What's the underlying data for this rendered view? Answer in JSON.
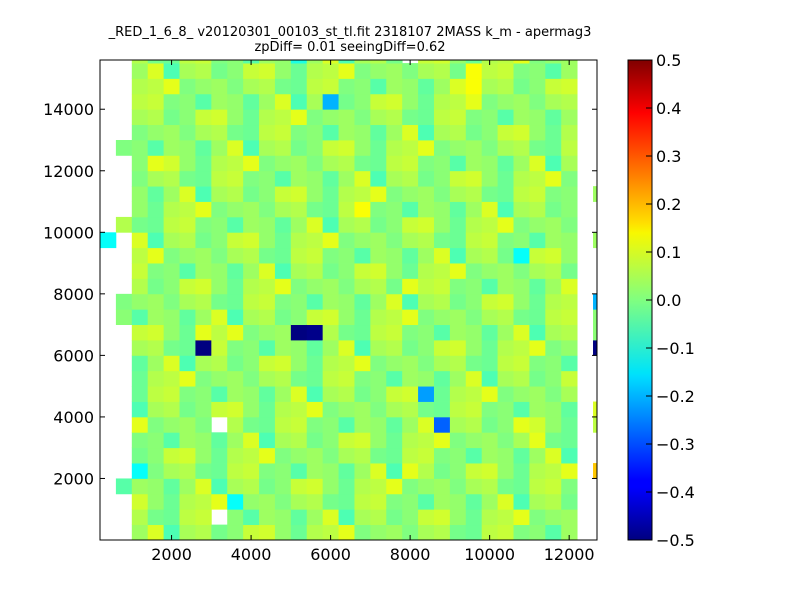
{
  "chart_data": {
    "type": "heatmap",
    "title_lines": [
      "_RED_1_6_8_ v20120301_00103_st_tl.fit 2318107 2MASS k_m - apermag3",
      "zpDiff= 0.01 seeingDiff=0.62"
    ],
    "xlabel": "",
    "ylabel": "",
    "xlim": [
      200,
      12700
    ],
    "ylim": [
      0,
      15600
    ],
    "x_ticks": [
      2000,
      4000,
      6000,
      8000,
      10000,
      12000
    ],
    "y_ticks": [
      2000,
      4000,
      6000,
      8000,
      10000,
      12000,
      14000
    ],
    "grid": false,
    "colormap": "jet",
    "colorbar": {
      "range": [
        -0.5,
        0.5
      ],
      "ticks": [
        "0.5",
        "0.4",
        "0.3",
        "0.2",
        "0.1",
        "0.0",
        "−0.1",
        "−0.2",
        "−0.3",
        "−0.4",
        "−0.5"
      ],
      "tick_values": [
        0.5,
        0.4,
        0.3,
        0.2,
        0.1,
        0.0,
        -0.1,
        -0.2,
        -0.3,
        -0.4,
        -0.5
      ]
    },
    "grid_cells": {
      "x_origin": 200,
      "x_step": 400,
      "ncols": 32,
      "y_origin": 0,
      "y_step": 500,
      "nrows": 32
    },
    "background_pattern_values": [
      0.02,
      0.05,
      0.0,
      0.07,
      -0.01,
      0.04,
      0.03,
      -0.03,
      0.06,
      0.01,
      0.08,
      -0.02,
      0.05,
      0.0,
      0.03,
      0.1,
      -0.04,
      0.02,
      0.06,
      -0.01,
      0.04,
      0.09,
      0.0,
      0.03,
      -0.02,
      0.07,
      0.01,
      0.05,
      -0.05,
      0.02
    ],
    "column_extents": [
      {
        "x": 400,
        "y_ranges": [
          [
            1500,
            2000
          ],
          [
            7000,
            8000
          ],
          [
            10000,
            10500
          ],
          [
            12500,
            13000
          ]
        ]
      },
      {
        "x": 800,
        "y_ranges": [
          [
            6000,
            6500
          ],
          [
            7500,
            8000
          ],
          [
            9500,
            10000
          ],
          [
            11000,
            11500
          ],
          [
            13500,
            14000
          ]
        ]
      },
      {
        "x": 1000,
        "y_ranges": [
          [
            0,
            15600
          ]
        ]
      }
    ],
    "right_edge_extents": [
      {
        "x": 12400,
        "y_ranges": [
          [
            3500,
            4500
          ],
          [
            6000,
            8000
          ],
          [
            9500,
            10000
          ],
          [
            11000,
            11500
          ]
        ]
      },
      {
        "x": 12600,
        "y_ranges": [
          [
            2000,
            2500
          ],
          [
            5500,
            6500
          ],
          [
            7000,
            7500
          ],
          [
            9500,
            10000
          ]
        ]
      }
    ],
    "notable_cells": [
      {
        "x": 5000,
        "y": 6900,
        "value": -0.5
      },
      {
        "x": 5400,
        "y": 6500,
        "value": -0.49
      },
      {
        "x": 2600,
        "y": 6000,
        "value": -0.5
      },
      {
        "x": 12600,
        "y": 6000,
        "value": -0.5
      },
      {
        "x": 8600,
        "y": 3600,
        "value": -0.28
      },
      {
        "x": 8200,
        "y": 4500,
        "value": -0.22
      },
      {
        "x": 5800,
        "y": 14000,
        "value": -0.2
      },
      {
        "x": 12600,
        "y": 7500,
        "value": -0.2
      },
      {
        "x": 200,
        "y": 9500,
        "value": -0.12
      },
      {
        "x": 3400,
        "y": 1300,
        "value": -0.12
      },
      {
        "x": 1200,
        "y": 2200,
        "value": -0.12
      },
      {
        "x": 10800,
        "y": 9000,
        "value": -0.12
      },
      {
        "x": 5000,
        "y": 15500,
        "value": -0.1
      },
      {
        "x": 6600,
        "y": 10500,
        "value": 0.12
      },
      {
        "x": 9400,
        "y": 15000,
        "value": 0.12
      },
      {
        "x": 9400,
        "y": 14500,
        "value": 0.12
      },
      {
        "x": 12600,
        "y": 2200,
        "value": 0.18
      },
      {
        "x": 11200,
        "y": 3200,
        "value": 0.1
      },
      {
        "x": 10800,
        "y": 3500,
        "value": 0.1
      },
      {
        "x": 7800,
        "y": 2200,
        "value": 0.1
      },
      {
        "x": 7800,
        "y": 8000,
        "value": 0.1
      },
      {
        "x": 1600,
        "y": 12000,
        "value": 0.1
      },
      {
        "x": 2600,
        "y": 6900,
        "value": 0.1
      },
      {
        "x": 3000,
        "y": 3600,
        "value": null
      },
      {
        "x": 3000,
        "y": 700,
        "value": null
      },
      {
        "x": 8000,
        "y": 15500,
        "value": null
      }
    ]
  }
}
